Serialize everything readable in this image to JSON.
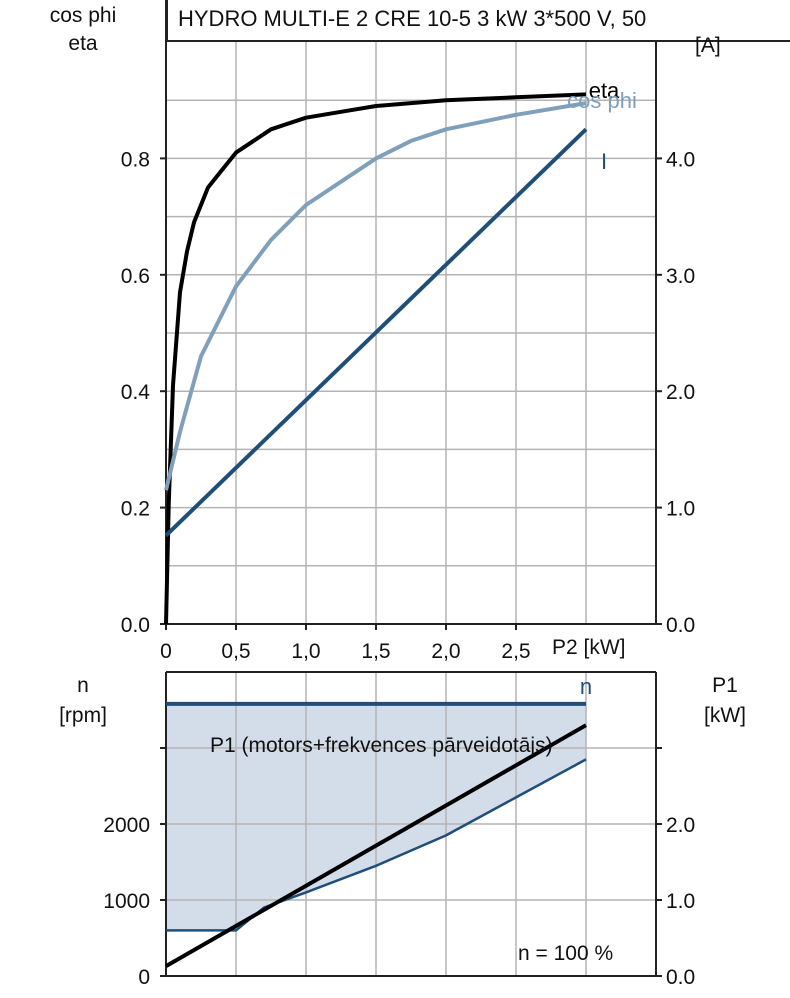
{
  "title": "HYDRO MULTI-E 2 CRE 10-5   3 kW   3*500 V, 50",
  "colors": {
    "eta": "#000000",
    "cos_phi": "#7f9fba",
    "current": "#1f4e79",
    "n": "#1f4e79",
    "p1_motor": "#000000",
    "p1_fill": "#d3dde9",
    "grid": "#b4b4b4"
  },
  "chart_data": [
    {
      "type": "line",
      "ylabel_left_1": "cos phi",
      "ylabel_left_2": "eta",
      "ylabel_right": "[A]",
      "xlabel": "P2 [kW]",
      "x_ticks": [
        "0",
        "0,5",
        "1,0",
        "1,5",
        "2,0",
        "2,5"
      ],
      "y_left_ticks": [
        "0.0",
        "0.2",
        "0.4",
        "0.6",
        "0.8"
      ],
      "y_right_ticks": [
        "0.0",
        "1.0",
        "2.0",
        "3.0",
        "4.0"
      ],
      "xlim": [
        0,
        3.5
      ],
      "ylim_left": [
        0,
        1.0
      ],
      "ylim_right": [
        0,
        5.0
      ],
      "series": [
        {
          "name": "eta",
          "axis": "left",
          "x": [
            0,
            0.02,
            0.05,
            0.1,
            0.15,
            0.2,
            0.3,
            0.4,
            0.5,
            0.75,
            1.0,
            1.25,
            1.5,
            1.75,
            2.0,
            2.5,
            3.0
          ],
          "y": [
            0,
            0.21,
            0.41,
            0.57,
            0.64,
            0.69,
            0.75,
            0.78,
            0.81,
            0.85,
            0.87,
            0.88,
            0.89,
            0.895,
            0.9,
            0.905,
            0.91
          ]
        },
        {
          "name": "cos phi",
          "axis": "left",
          "x": [
            0,
            0.1,
            0.25,
            0.5,
            0.75,
            1.0,
            1.25,
            1.5,
            1.75,
            2.0,
            2.5,
            3.0
          ],
          "y": [
            0.23,
            0.33,
            0.46,
            0.58,
            0.66,
            0.72,
            0.76,
            0.8,
            0.83,
            0.85,
            0.875,
            0.895
          ]
        },
        {
          "name": "I",
          "axis": "right",
          "x": [
            0,
            3.0
          ],
          "y": [
            0.76,
            4.25
          ]
        }
      ]
    },
    {
      "type": "line",
      "ylabel_left_1": "n",
      "ylabel_left_2": "[rpm]",
      "ylabel_right_1": "P1",
      "ylabel_right_2": "[kW]",
      "y_left_ticks": [
        "0",
        "1000",
        "2000"
      ],
      "y_right_ticks": [
        "0.0",
        "1.0",
        "2.0"
      ],
      "xlim": [
        0,
        3.5
      ],
      "ylim_left": [
        0,
        4000
      ],
      "ylim_right": [
        0,
        4.0
      ],
      "annotation_p1": "P1 (motors+frekvences pārveidotājs)",
      "annotation_speed": "n = 100 %",
      "series": [
        {
          "name": "n",
          "axis": "left",
          "x": [
            0,
            3.0
          ],
          "y": [
            3580,
            3580
          ]
        },
        {
          "name": "P1 (motors+frekvences pārveidotājs)",
          "axis": "right",
          "x": [
            0,
            3.0
          ],
          "y": [
            0.13,
            3.3
          ]
        },
        {
          "axis": "right",
          "x": [
            0,
            0.5,
            0.7,
            1.0,
            1.5,
            2.0,
            2.5,
            3.0
          ],
          "y": [
            0.6,
            0.6,
            0.9,
            1.1,
            1.45,
            1.85,
            2.35,
            2.85
          ]
        }
      ]
    }
  ]
}
